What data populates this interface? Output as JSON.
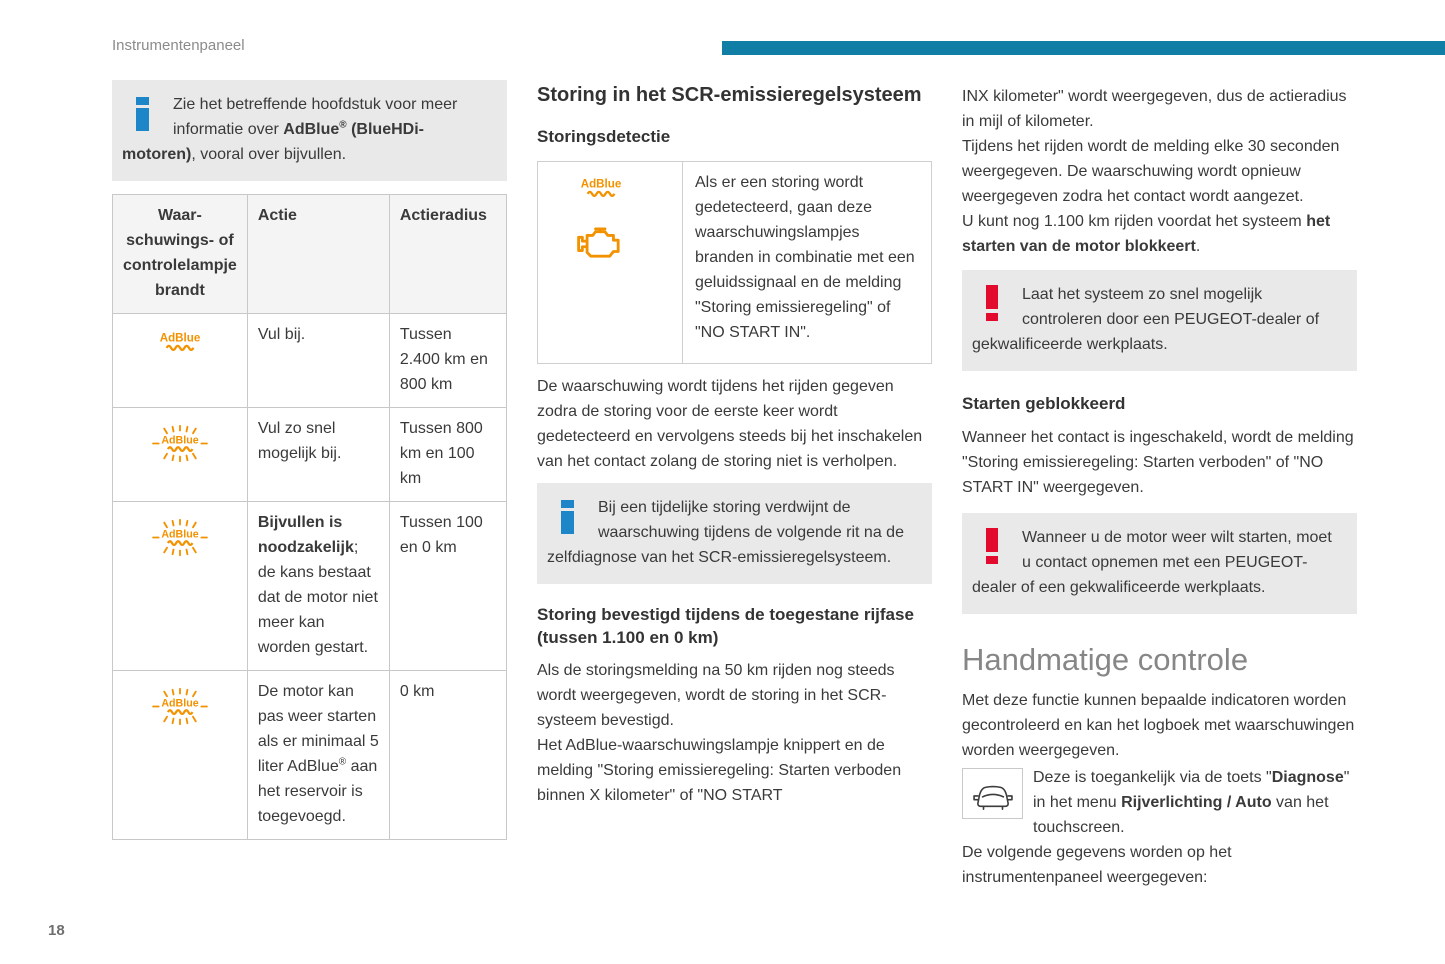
{
  "page": {
    "header_title": "Instrumentenpaneel",
    "page_number": "18",
    "accent_bar_color": "#117ea5",
    "info_icon_color": "#1c86c8",
    "warning_icon_color": "#e30b2d",
    "lamp_color": "#f29200",
    "note_background": "#e9e9e9",
    "adblue_label": "AdBlue"
  },
  "left_column": {
    "info_note": [
      {
        "t": "Zie het betreffende hoofdstuk voor meer informatie over "
      },
      {
        "t": "AdBlue",
        "b": true
      },
      {
        "t": "®",
        "b": true,
        "sup": true
      },
      {
        "t": " (BlueHDi-motoren)",
        "b": true
      },
      {
        "t": ", vooral over bijvullen."
      }
    ],
    "table": {
      "headers": {
        "lamp": "Waar-schuwings- of controlelampje brandt",
        "actie": "Actie",
        "radius": "Actieradius"
      },
      "rows": [
        {
          "lamp_icon": "adblue-warning-lamp",
          "actie": [
            {
              "t": "Vul bij."
            }
          ],
          "radius": "Tussen 2.400 km en 800 km"
        },
        {
          "lamp_icon": "adblue-warning-lamp-blinking",
          "actie": [
            {
              "t": "Vul zo snel mogelijk bij."
            }
          ],
          "radius": "Tussen 800 km en 100 km"
        },
        {
          "lamp_icon": "adblue-warning-lamp-blinking",
          "actie": [
            {
              "t": "Bijvullen is noodzakelijk",
              "b": true
            },
            {
              "t": "; de kans bestaat dat de motor niet meer kan worden gestart."
            }
          ],
          "radius": "Tussen 100 en 0 km"
        },
        {
          "lamp_icon": "adblue-warning-lamp-blinking",
          "actie": [
            {
              "t": "De motor kan pas weer starten als er minimaal 5 liter AdBlue"
            },
            {
              "t": "®",
              "sup": true
            },
            {
              "t": " aan het reservoir is toegevoegd."
            }
          ],
          "radius": "0 km"
        }
      ]
    }
  },
  "middle_column": {
    "section_title": "Storing in het SCR-emissieregelsysteem",
    "subsection_detection": "Storingsdetectie",
    "lamps_box_text": "Als er een storing wordt gedetecteerd, gaan deze waarschuwingslampjes branden in combinatie met een geluidssignaal en de melding \"Storing emissieregeling\" of \"NO START IN\".",
    "para_detection": "De waarschuwing wordt tijdens het rijden gegeven zodra de storing voor de eerste keer wordt gedetecteerd en vervolgens steeds bij het inschakelen van het contact zolang de storing niet is verholpen.",
    "info_note": "Bij een tijdelijke storing verdwijnt de waarschuwing tijdens de volgende rit na de zelfdiagnose van het SCR-emissieregelsysteem.",
    "subsection_confirmed": "Storing bevestigd tijdens de toegestane rijfase (tussen 1.100 en 0 km)",
    "para_confirmed": "Als de storingsmelding na 50 km rijden nog steeds wordt weergegeven, wordt de storing in het SCR-systeem bevestigd.\nHet AdBlue-waarschuwingslampje knippert en de melding \"Storing emissieregeling: Starten verboden binnen X kilometer\" of \"NO START"
  },
  "right_column": {
    "para_range": [
      {
        "t": "INX kilometer\" wordt weergegeven, dus de actieradius in mijl of kilometer.\nTijdens het rijden wordt de melding elke 30 seconden weergegeven. De waarschuwing wordt opnieuw weergegeven zodra het contact wordt aangezet.\nU kunt nog 1.100 km rijden voordat het systeem "
      },
      {
        "t": "het starten van de motor blokkeert",
        "b": true
      },
      {
        "t": "."
      }
    ],
    "warning_check": "Laat het systeem zo snel mogelijk controleren door een PEUGEOT-dealer of gekwalificeerde werkplaats.",
    "subsection_blocked": "Starten geblokkeerd",
    "para_blocked": "Wanneer het contact is ingeschakeld, wordt de melding \"Storing emissieregeling: Starten verboden\" of \"NO START IN\" weergegeven.",
    "warning_restart": "Wanneer u de motor weer wilt starten, moet u contact opnemen met een PEUGEOT-dealer of een gekwalificeerde werkplaats.",
    "section_manual": "Handmatige controle",
    "para_manual": "Met deze functie kunnen bepaalde indicatoren worden gecontroleerd en kan het logboek met waarschuwingen worden weergegeven.",
    "para_diagnose": [
      {
        "t": "Deze is toegankelijk via de toets \""
      },
      {
        "t": "Diagnose",
        "b": true
      },
      {
        "t": "\" in het menu "
      },
      {
        "t": "Rijverlichting / Auto",
        "b": true
      },
      {
        "t": " van het touchscreen.\nDe volgende gegevens worden op het instrumentenpaneel weergegeven:"
      }
    ]
  }
}
